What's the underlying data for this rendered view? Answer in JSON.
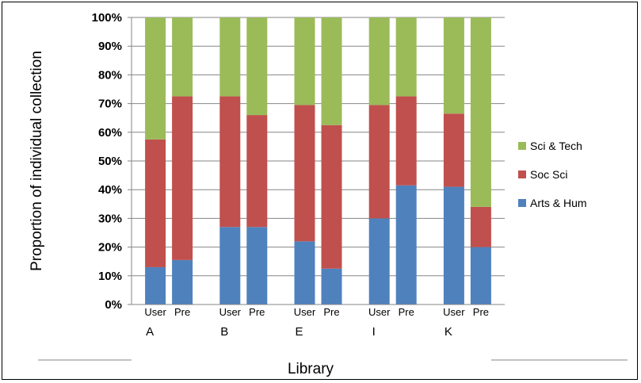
{
  "chart_data": {
    "type": "bar",
    "stacked": true,
    "percent_stacked": true,
    "xlabel": "Library",
    "ylabel": "Proportion of individual collection",
    "ylim": [
      0,
      100
    ],
    "y_ticks": [
      "0%",
      "10%",
      "20%",
      "30%",
      "40%",
      "50%",
      "60%",
      "70%",
      "80%",
      "90%",
      "100%"
    ],
    "groups": [
      "A",
      "B",
      "E",
      "I",
      "K"
    ],
    "subcategories": [
      "User",
      "Pre"
    ],
    "series": [
      {
        "name": "Arts & Hum",
        "color": "#4f81bd",
        "values": [
          13,
          15.5,
          27,
          27,
          22,
          12.5,
          30,
          41.5,
          41,
          20
        ]
      },
      {
        "name": "Soc Sci",
        "color": "#c0504d",
        "values": [
          44.5,
          57,
          45.5,
          39,
          47.5,
          50,
          39.5,
          31,
          25.5,
          14
        ]
      },
      {
        "name": "Sci & Tech",
        "color": "#9bbb59",
        "values": [
          42.5,
          27.5,
          27.5,
          34,
          30.5,
          37.5,
          30.5,
          27.5,
          33.5,
          66
        ]
      }
    ],
    "legend": {
      "position": "right",
      "entries": [
        "Sci & Tech",
        "Soc Sci",
        "Arts & Hum"
      ]
    },
    "grid": true
  }
}
